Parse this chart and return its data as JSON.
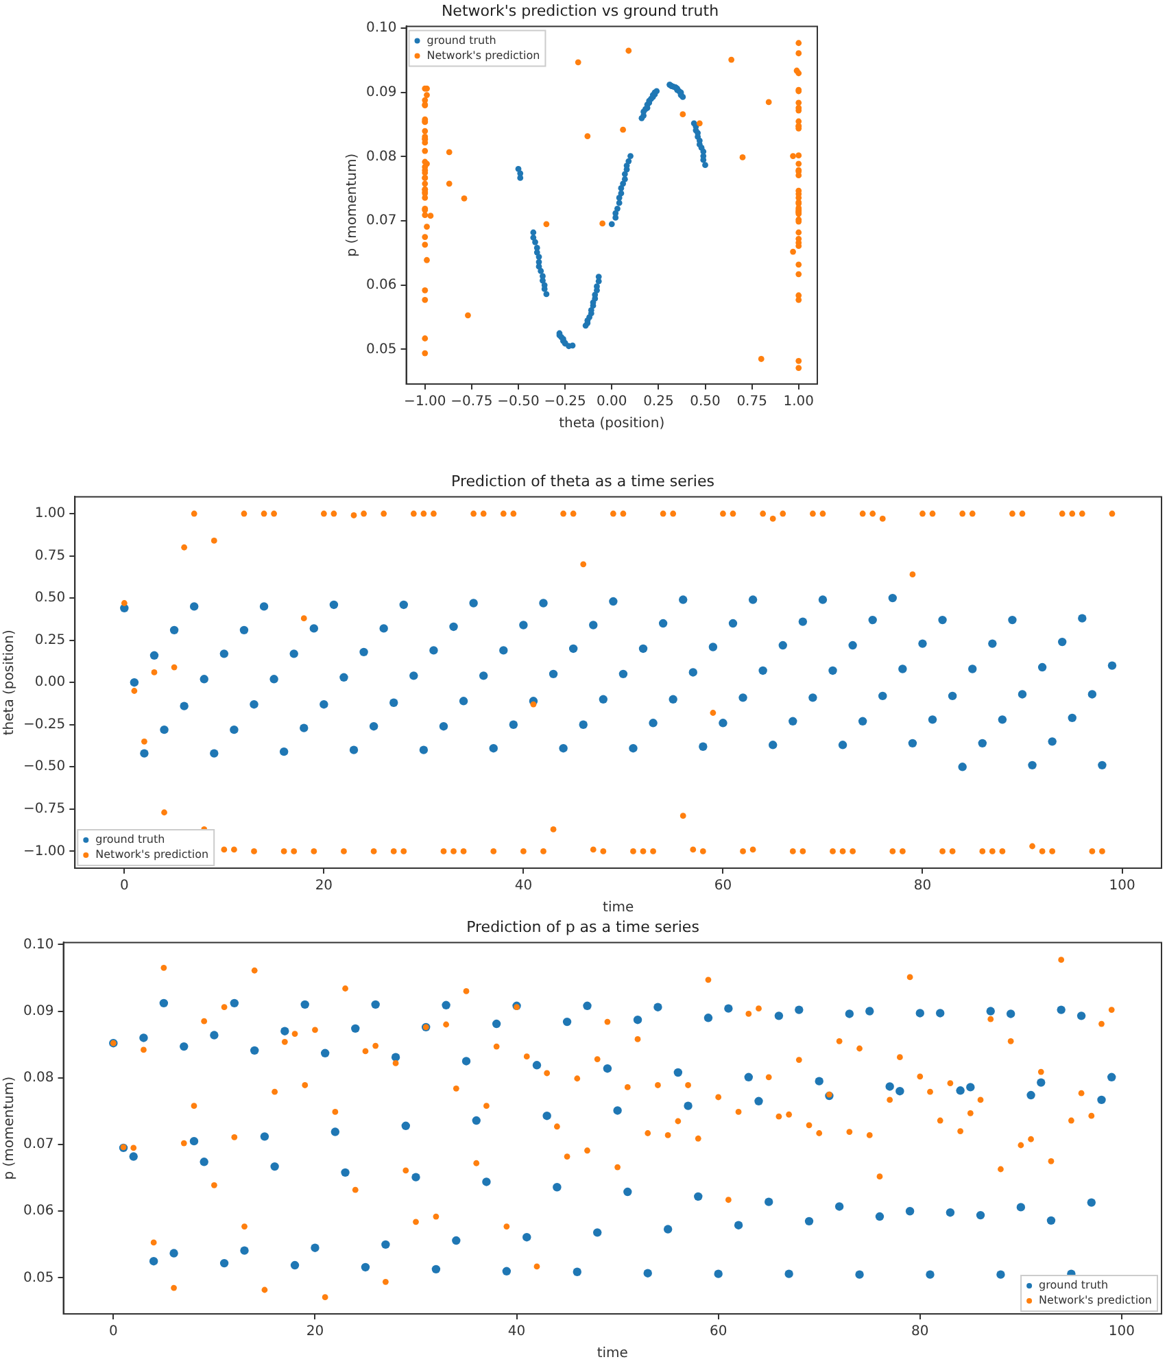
{
  "chart_data": [
    {
      "type": "scatter",
      "title": "Network's prediction vs ground truth",
      "xlabel": "theta (position)",
      "ylabel": "p (momentum)",
      "xlim": [
        -1.1,
        1.1
      ],
      "ylim": [
        0.0446,
        0.1003
      ],
      "xticks": [
        {
          "value": -1,
          "label": "−1.00"
        },
        {
          "value": -0.75,
          "label": "−0.75"
        },
        {
          "value": -0.5,
          "label": "−0.50"
        },
        {
          "value": -0.25,
          "label": "−0.25"
        },
        {
          "value": 0,
          "label": "0.00"
        },
        {
          "value": 0.25,
          "label": "0.25"
        },
        {
          "value": 0.5,
          "label": "0.50"
        },
        {
          "value": 0.75,
          "label": "0.75"
        },
        {
          "value": 1,
          "label": "1.00"
        }
      ],
      "yticks": [
        0.05,
        0.06,
        0.07,
        0.08,
        0.09,
        {
          "value": 0.1,
          "label": "0.10"
        }
      ],
      "grid": false,
      "legend": "top left",
      "marker": "circle",
      "series": [
        {
          "name": "ground truth",
          "color": "#1f77b4",
          "x": [
            0.44,
            0,
            -0.42,
            0.16,
            -0.28,
            0.31,
            -0.14,
            0.45,
            0.02,
            -0.42,
            0.17,
            -0.28,
            0.31,
            -0.13,
            0.45,
            0.02,
            -0.41,
            0.17,
            -0.27,
            0.32,
            -0.13,
            0.46,
            0.03,
            -0.4,
            0.18,
            -0.26,
            0.32,
            -0.12,
            0.46,
            0.04,
            -0.4,
            0.19,
            -0.26,
            0.33,
            -0.11,
            0.47,
            0.04,
            -0.39,
            0.19,
            -0.25,
            0.34,
            -0.11,
            0.47,
            0.05,
            -0.39,
            0.2,
            -0.25,
            0.34,
            -0.1,
            0.48,
            0.05,
            -0.39,
            0.2,
            null,
            0.35,
            -0.1,
            0.49,
            0.06,
            -0.38,
            0.21,
            null,
            0.35,
            -0.09,
            0.49,
            0.07,
            -0.37,
            0.22,
            null,
            0.36,
            -0.09,
            0.49,
            0.07,
            -0.37,
            0.22,
            -0.23,
            0.37,
            -0.08,
            0.5,
            0.08,
            -0.36,
            0.23,
            null,
            0.37,
            -0.08,
            -0.5,
            0.08,
            -0.36,
            0.23,
            null,
            0.37,
            -0.07,
            -0.49,
            0.09,
            -0.35,
            0.24,
            -0.21,
            0.38,
            -0.07,
            -0.49,
            0.1
          ],
          "values": [
            0.0852,
            0.0695,
            0.0682,
            0.086,
            0.0525,
            0.0912,
            0.0537,
            0.0847,
            0.0705,
            0.0674,
            0.0864,
            0.0522,
            0.0912,
            0.0541,
            0.0841,
            0.0712,
            0.0667,
            0.087,
            0.0519,
            0.091,
            0.0545,
            0.0837,
            0.0719,
            0.0658,
            0.0874,
            0.0516,
            0.091,
            0.055,
            0.0831,
            0.0728,
            0.0651,
            0.0876,
            0.0513,
            0.0909,
            0.0556,
            0.0825,
            0.0736,
            0.0644,
            0.0881,
            0.051,
            0.0908,
            0.0561,
            0.0819,
            0.0743,
            0.0636,
            0.0884,
            0.0509,
            0.0908,
            0.0568,
            0.0814,
            0.0751,
            0.0629,
            0.0887,
            null,
            0.0906,
            0.0573,
            0.0808,
            0.0758,
            0.0622,
            0.089,
            null,
            0.0904,
            0.0579,
            0.0801,
            0.0765,
            0.0614,
            0.0893,
            null,
            0.0902,
            0.0585,
            0.0795,
            0.0773,
            0.0607,
            0.0896,
            0.0505,
            0.09,
            0.0592,
            0.0787,
            0.078,
            0.06,
            0.0897,
            null,
            0.0897,
            0.0598,
            0.0781,
            0.0786,
            0.0594,
            0.09,
            null,
            0.0896,
            0.0606,
            0.0774,
            0.0793,
            0.0586,
            0.0902,
            0.0506,
            0.0893,
            0.0613,
            0.0767,
            0.0801
          ]
        },
        {
          "name": "Network's prediction",
          "color": "#ff7f0e",
          "x": [
            0.47,
            -0.05,
            -0.35,
            0.06,
            -0.77,
            0.09,
            0.8,
            1,
            -0.87,
            0.84,
            -0.99,
            -0.99,
            1,
            -1,
            1,
            1,
            -1,
            -1,
            0.38,
            null,
            1,
            1,
            -1,
            0.99,
            1,
            -1,
            1,
            -1,
            -1,
            1,
            1,
            1,
            -1,
            -1,
            -1,
            1,
            1,
            -1,
            1,
            1,
            -1,
            -0.13,
            -1,
            -0.87,
            1,
            1,
            0.7,
            -0.99,
            -1,
            1,
            1,
            null,
            -1,
            -1,
            1,
            1,
            -0.79,
            -0.99,
            -1,
            -0.18,
            1,
            1,
            -1,
            -0.99,
            1,
            0.97,
            1,
            -1,
            -1,
            1,
            1,
            -1,
            -1,
            -1,
            1,
            1,
            0.97,
            -1,
            -1,
            0.64,
            1,
            1,
            -1,
            -1,
            1,
            1,
            -1,
            -1,
            -1,
            1,
            1,
            -0.97,
            -1,
            -1,
            1,
            1,
            1,
            -1,
            -1,
            1
          ],
          "values": [
            0.0852,
            0.0696,
            0.0695,
            0.0842,
            0.0553,
            0.0965,
            0.0485,
            0.0702,
            0.0758,
            0.0885,
            0.0639,
            0.0906,
            0.0711,
            0.0577,
            0.0961,
            0.0482,
            0.0779,
            0.0854,
            0.0866,
            null,
            0.0872,
            0.0471,
            0.0749,
            0.0934,
            0.0632,
            0.084,
            0.0848,
            0.0494,
            0.0822,
            0.0661,
            0.0584,
            0.0876,
            0.0592,
            0.088,
            0.0784,
            0.093,
            0.0672,
            0.0758,
            0.0847,
            0.0577,
            0.0906,
            0.0832,
            0.0517,
            0.0807,
            0.0727,
            0.0682,
            0.0799,
            0.0691,
            0.0828,
            0.0884,
            0.0666,
            null,
            0.0858,
            0.0717,
            0.0789,
            0.0714,
            0.0735,
            0.0789,
            0.0709,
            0.0947,
            0.0771,
            0.0617,
            0.0749,
            0.0896,
            0.0904,
            0.0801,
            0.0742,
            0.0745,
            0.0827,
            0.0729,
            0.0717,
            0.0775,
            0.0855,
            0.0719,
            0.0844,
            0.0714,
            0.0652,
            0.0767,
            0.0831,
            0.0951,
            0.0802,
            0.0779,
            0.0736,
            0.0792,
            0.072,
            0.0747,
            0.0767,
            0.0888,
            0.0663,
            0.0855,
            0.0699,
            0.0708,
            0.0809,
            0.0675,
            0.0977,
            0.0736,
            0.0777,
            0.0743,
            0.0881,
            0.0902
          ]
        }
      ]
    },
    {
      "type": "scatter",
      "title": "Prediction of theta as a time series",
      "xlabel": "time",
      "ylabel": "theta (position)",
      "xlim": [
        -4.95,
        103.95
      ],
      "ylim": [
        -1.1,
        1.1
      ],
      "xticks": [
        0,
        20,
        40,
        60,
        80,
        100
      ],
      "yticks": [
        {
          "value": -1,
          "label": "−1.00"
        },
        {
          "value": -0.75,
          "label": "−0.75"
        },
        {
          "value": -0.5,
          "label": "−0.50"
        },
        {
          "value": -0.25,
          "label": "−0.25"
        },
        {
          "value": 0,
          "label": "0.00"
        },
        {
          "value": 0.25,
          "label": "0.25"
        },
        {
          "value": 0.5,
          "label": "0.50"
        },
        {
          "value": 0.75,
          "label": "0.75"
        },
        {
          "value": 1,
          "label": "1.00"
        }
      ],
      "grid": false,
      "legend": "bottom left",
      "marker": "circle",
      "x": [
        0,
        1,
        2,
        3,
        4,
        5,
        6,
        7,
        8,
        9,
        10,
        11,
        12,
        13,
        14,
        15,
        16,
        17,
        18,
        19,
        20,
        21,
        22,
        23,
        24,
        25,
        26,
        27,
        28,
        29,
        30,
        31,
        32,
        33,
        34,
        35,
        36,
        37,
        38,
        39,
        40,
        41,
        42,
        43,
        44,
        45,
        46,
        47,
        48,
        49,
        50,
        51,
        52,
        53,
        54,
        55,
        56,
        57,
        58,
        59,
        60,
        61,
        62,
        63,
        64,
        65,
        66,
        67,
        68,
        69,
        70,
        71,
        72,
        73,
        74,
        75,
        76,
        77,
        78,
        79,
        80,
        81,
        82,
        83,
        84,
        85,
        86,
        87,
        88,
        89,
        90,
        91,
        92,
        93,
        94,
        95,
        96,
        97,
        98,
        99
      ],
      "series": [
        {
          "name": "ground truth",
          "color": "#1f77b4",
          "values": [
            0.44,
            0,
            -0.42,
            0.16,
            -0.28,
            0.31,
            -0.14,
            0.45,
            0.02,
            -0.42,
            0.17,
            -0.28,
            0.31,
            -0.13,
            0.45,
            0.02,
            -0.41,
            0.17,
            -0.27,
            0.32,
            -0.13,
            0.46,
            0.03,
            -0.4,
            0.18,
            -0.26,
            0.32,
            -0.12,
            0.46,
            0.04,
            -0.4,
            0.19,
            -0.26,
            0.33,
            -0.11,
            0.47,
            0.04,
            -0.39,
            0.19,
            -0.25,
            0.34,
            -0.11,
            0.47,
            0.05,
            -0.39,
            0.2,
            -0.25,
            0.34,
            -0.1,
            0.48,
            0.05,
            -0.39,
            0.2,
            -0.24,
            0.35,
            -0.1,
            0.49,
            0.06,
            -0.38,
            0.21,
            -0.24,
            0.35,
            -0.09,
            0.49,
            0.07,
            -0.37,
            0.22,
            -0.23,
            0.36,
            -0.09,
            0.49,
            0.07,
            -0.37,
            0.22,
            -0.23,
            0.37,
            -0.08,
            0.5,
            0.08,
            -0.36,
            0.23,
            -0.22,
            0.37,
            -0.08,
            -0.5,
            0.08,
            -0.36,
            0.23,
            -0.22,
            0.37,
            -0.07,
            -0.49,
            0.09,
            -0.35,
            0.24,
            -0.21,
            0.38,
            -0.07,
            -0.49,
            0.1
          ]
        },
        {
          "name": "Network's prediction",
          "color": "#ff7f0e",
          "values": [
            0.47,
            -0.05,
            -0.35,
            0.06,
            -0.77,
            0.09,
            0.8,
            1,
            -0.87,
            0.84,
            -0.99,
            -0.99,
            1,
            -1,
            1,
            1,
            -1,
            -1,
            0.38,
            -1,
            1,
            1,
            -1,
            0.99,
            1,
            -1,
            1,
            -1,
            -1,
            1,
            1,
            1,
            -1,
            -1,
            -1,
            1,
            1,
            -1,
            1,
            1,
            -1,
            -0.13,
            -1,
            -0.87,
            1,
            1,
            0.7,
            -0.99,
            -1,
            1,
            1,
            -1,
            -1,
            -1,
            1,
            1,
            -0.79,
            -0.99,
            -1,
            -0.18,
            1,
            1,
            -1,
            -0.99,
            1,
            0.97,
            1,
            -1,
            -1,
            1,
            1,
            -1,
            -1,
            -1,
            1,
            1,
            0.97,
            -1,
            -1,
            0.64,
            1,
            1,
            -1,
            -1,
            1,
            1,
            -1,
            -1,
            -1,
            1,
            1,
            -0.97,
            -1,
            -1,
            1,
            1,
            1,
            -1,
            -1,
            1
          ]
        }
      ]
    },
    {
      "type": "scatter",
      "title": "Prediction of p as a time series",
      "xlabel": "time",
      "ylabel": "p (momentum)",
      "xlim": [
        -4.95,
        103.95
      ],
      "ylim": [
        0.0446,
        0.1003
      ],
      "xticks": [
        0,
        20,
        40,
        60,
        80,
        100
      ],
      "yticks": [
        0.05,
        0.06,
        0.07,
        0.08,
        0.09,
        {
          "value": 0.1,
          "label": "0.10"
        }
      ],
      "grid": false,
      "legend": "bottom right",
      "marker": "circle",
      "x": [
        0,
        1,
        2,
        3,
        4,
        5,
        6,
        7,
        8,
        9,
        10,
        11,
        12,
        13,
        14,
        15,
        16,
        17,
        18,
        19,
        20,
        21,
        22,
        23,
        24,
        25,
        26,
        27,
        28,
        29,
        30,
        31,
        32,
        33,
        34,
        35,
        36,
        37,
        38,
        39,
        40,
        41,
        42,
        43,
        44,
        45,
        46,
        47,
        48,
        49,
        50,
        51,
        52,
        53,
        54,
        55,
        56,
        57,
        58,
        59,
        60,
        61,
        62,
        63,
        64,
        65,
        66,
        67,
        68,
        69,
        70,
        71,
        72,
        73,
        74,
        75,
        76,
        77,
        78,
        79,
        80,
        81,
        82,
        83,
        84,
        85,
        86,
        87,
        88,
        89,
        90,
        91,
        92,
        93,
        94,
        95,
        96,
        97,
        98,
        99
      ],
      "series": [
        {
          "name": "ground truth",
          "color": "#1f77b4",
          "values": [
            0.0852,
            0.0695,
            0.0682,
            0.086,
            0.0525,
            0.0912,
            0.0537,
            0.0847,
            0.0705,
            0.0674,
            0.0864,
            0.0522,
            0.0912,
            0.0541,
            0.0841,
            0.0712,
            0.0667,
            0.087,
            0.0519,
            0.091,
            0.0545,
            0.0837,
            0.0719,
            0.0658,
            0.0874,
            0.0516,
            0.091,
            0.055,
            0.0831,
            0.0728,
            0.0651,
            0.0876,
            0.0513,
            0.0909,
            0.0556,
            0.0825,
            0.0736,
            0.0644,
            0.0881,
            0.051,
            0.0908,
            0.0561,
            0.0819,
            0.0743,
            0.0636,
            0.0884,
            0.0509,
            0.0908,
            0.0568,
            0.0814,
            0.0751,
            0.0629,
            0.0887,
            0.0507,
            0.0906,
            0.0573,
            0.0808,
            0.0758,
            0.0622,
            0.089,
            0.0506,
            0.0904,
            0.0579,
            0.0801,
            0.0765,
            0.0614,
            0.0893,
            0.0506,
            0.0902,
            0.0585,
            0.0795,
            0.0773,
            0.0607,
            0.0896,
            0.0505,
            0.09,
            0.0592,
            0.0787,
            0.078,
            0.06,
            0.0897,
            0.0505,
            0.0897,
            0.0598,
            0.0781,
            0.0786,
            0.0594,
            0.09,
            0.0505,
            0.0896,
            0.0606,
            0.0774,
            0.0793,
            0.0586,
            0.0902,
            0.0506,
            0.0893,
            0.0613,
            0.0767,
            0.0801
          ]
        },
        {
          "name": "Network's prediction",
          "color": "#ff7f0e",
          "values": [
            0.0852,
            0.0696,
            0.0695,
            0.0842,
            0.0553,
            0.0965,
            0.0485,
            0.0702,
            0.0758,
            0.0885,
            0.0639,
            0.0906,
            0.0711,
            0.0577,
            0.0961,
            0.0482,
            0.0779,
            0.0854,
            0.0866,
            0.0789,
            0.0872,
            0.0471,
            0.0749,
            0.0934,
            0.0632,
            0.084,
            0.0848,
            0.0494,
            0.0822,
            0.0661,
            0.0584,
            0.0876,
            0.0592,
            0.088,
            0.0784,
            0.093,
            0.0672,
            0.0758,
            0.0847,
            0.0577,
            0.0906,
            0.0832,
            0.0517,
            0.0807,
            0.0727,
            0.0682,
            0.0799,
            0.0691,
            0.0828,
            0.0884,
            0.0666,
            0.0786,
            0.0858,
            0.0717,
            0.0789,
            0.0714,
            0.0735,
            0.0789,
            0.0709,
            0.0947,
            0.0771,
            0.0617,
            0.0749,
            0.0896,
            0.0904,
            0.0801,
            0.0742,
            0.0745,
            0.0827,
            0.0729,
            0.0717,
            0.0775,
            0.0855,
            0.0719,
            0.0844,
            0.0714,
            0.0652,
            0.0767,
            0.0831,
            0.0951,
            0.0802,
            0.0779,
            0.0736,
            0.0792,
            0.072,
            0.0747,
            0.0767,
            0.0888,
            0.0663,
            0.0855,
            0.0699,
            0.0708,
            0.0809,
            0.0675,
            0.0977,
            0.0736,
            0.0777,
            0.0743,
            0.0881,
            0.0902
          ]
        }
      ]
    }
  ]
}
